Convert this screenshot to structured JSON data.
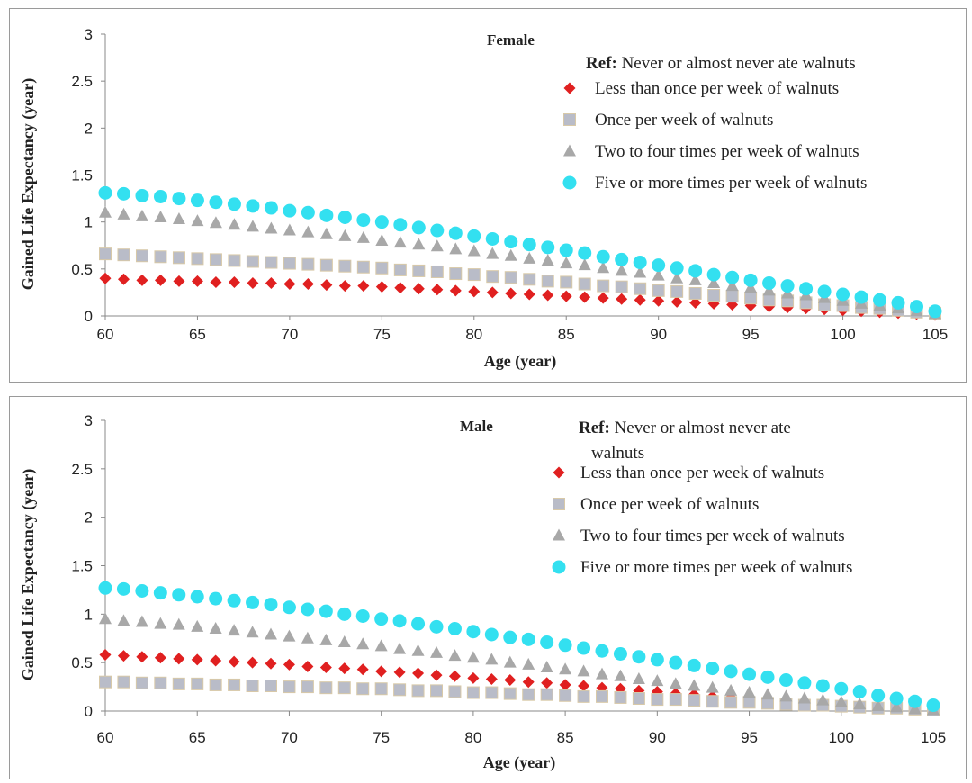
{
  "chart_data": [
    {
      "type": "scatter",
      "title": "Female",
      "xlabel": "Age (year)",
      "ylabel": "Gained Life Expectancy (year)",
      "xlim": [
        60,
        105
      ],
      "ylim": [
        0,
        3
      ],
      "x_ticks": [
        "60",
        "65",
        "70",
        "75",
        "80",
        "85",
        "90",
        "95",
        "100",
        "105"
      ],
      "y_ticks": [
        "0",
        "0.5",
        "1",
        "1.5",
        "2",
        "2.5",
        "3"
      ],
      "grid": false,
      "legend_position": "top-right",
      "legend_ref_label": "Ref:",
      "legend_ref_text": "Never or almost never ate walnuts",
      "x": [
        60,
        61,
        62,
        63,
        64,
        65,
        66,
        67,
        68,
        69,
        70,
        71,
        72,
        73,
        74,
        75,
        76,
        77,
        78,
        79,
        80,
        81,
        82,
        83,
        84,
        85,
        86,
        87,
        88,
        89,
        90,
        91,
        92,
        93,
        94,
        95,
        96,
        97,
        98,
        99,
        100,
        101,
        102,
        103,
        104,
        105
      ],
      "series": [
        {
          "name": "Less than once per week of walnuts",
          "marker": "diamond",
          "color": "#e02020",
          "values": [
            0.4,
            0.39,
            0.38,
            0.38,
            0.37,
            0.37,
            0.36,
            0.36,
            0.35,
            0.35,
            0.34,
            0.34,
            0.33,
            0.32,
            0.32,
            0.31,
            0.3,
            0.29,
            0.28,
            0.27,
            0.26,
            0.25,
            0.24,
            0.23,
            0.22,
            0.21,
            0.2,
            0.19,
            0.18,
            0.17,
            0.16,
            0.15,
            0.14,
            0.13,
            0.12,
            0.11,
            0.1,
            0.09,
            0.08,
            0.07,
            0.06,
            0.05,
            0.04,
            0.03,
            0.02,
            0.01
          ]
        },
        {
          "name": "Once per week of walnuts",
          "marker": "square",
          "color": "#b9bcc8",
          "values": [
            0.66,
            0.65,
            0.64,
            0.63,
            0.62,
            0.61,
            0.6,
            0.59,
            0.58,
            0.57,
            0.56,
            0.55,
            0.54,
            0.53,
            0.52,
            0.51,
            0.49,
            0.48,
            0.47,
            0.45,
            0.44,
            0.42,
            0.41,
            0.39,
            0.37,
            0.36,
            0.34,
            0.32,
            0.31,
            0.29,
            0.27,
            0.26,
            0.24,
            0.22,
            0.21,
            0.19,
            0.17,
            0.16,
            0.14,
            0.12,
            0.11,
            0.09,
            0.08,
            0.06,
            0.04,
            0.03
          ]
        },
        {
          "name": "Two to four times per week of walnuts",
          "marker": "triangle",
          "color": "#a8a8a8",
          "values": [
            1.1,
            1.08,
            1.06,
            1.05,
            1.03,
            1.01,
            0.99,
            0.97,
            0.95,
            0.93,
            0.91,
            0.89,
            0.87,
            0.85,
            0.83,
            0.8,
            0.78,
            0.76,
            0.74,
            0.71,
            0.69,
            0.66,
            0.64,
            0.61,
            0.59,
            0.56,
            0.54,
            0.51,
            0.48,
            0.46,
            0.43,
            0.4,
            0.38,
            0.35,
            0.32,
            0.3,
            0.27,
            0.24,
            0.22,
            0.19,
            0.16,
            0.13,
            0.11,
            0.08,
            0.05,
            0.02
          ]
        },
        {
          "name": "Five or more times per week of walnuts",
          "marker": "circle",
          "color": "#33e0f0",
          "values": [
            1.31,
            1.3,
            1.28,
            1.27,
            1.25,
            1.23,
            1.21,
            1.19,
            1.17,
            1.15,
            1.12,
            1.1,
            1.07,
            1.05,
            1.02,
            1.0,
            0.97,
            0.94,
            0.91,
            0.88,
            0.85,
            0.82,
            0.79,
            0.76,
            0.73,
            0.7,
            0.67,
            0.63,
            0.6,
            0.57,
            0.54,
            0.51,
            0.48,
            0.44,
            0.41,
            0.38,
            0.35,
            0.32,
            0.29,
            0.26,
            0.23,
            0.2,
            0.17,
            0.14,
            0.1,
            0.05
          ]
        }
      ]
    },
    {
      "type": "scatter",
      "title": "Male",
      "xlabel": "Age (year)",
      "ylabel": "Gained Life Expectancy (year)",
      "xlim": [
        60,
        105
      ],
      "ylim": [
        0,
        3
      ],
      "x_ticks": [
        "60",
        "65",
        "70",
        "75",
        "80",
        "85",
        "90",
        "95",
        "100",
        "105"
      ],
      "y_ticks": [
        "0",
        "0.5",
        "1",
        "1.5",
        "2",
        "2.5",
        "3"
      ],
      "grid": false,
      "legend_position": "top-right",
      "legend_ref_label": "Ref:",
      "legend_ref_text": "Never or almost never ate",
      "legend_ref_text_2": "walnuts",
      "x": [
        60,
        61,
        62,
        63,
        64,
        65,
        66,
        67,
        68,
        69,
        70,
        71,
        72,
        73,
        74,
        75,
        76,
        77,
        78,
        79,
        80,
        81,
        82,
        83,
        84,
        85,
        86,
        87,
        88,
        89,
        90,
        91,
        92,
        93,
        94,
        95,
        96,
        97,
        98,
        99,
        100,
        101,
        102,
        103,
        104,
        105
      ],
      "series": [
        {
          "name": "Less than once per week of walnuts",
          "marker": "diamond",
          "color": "#e02020",
          "values": [
            0.58,
            0.57,
            0.56,
            0.55,
            0.54,
            0.53,
            0.52,
            0.51,
            0.5,
            0.49,
            0.48,
            0.46,
            0.45,
            0.44,
            0.43,
            0.41,
            0.4,
            0.39,
            0.37,
            0.36,
            0.34,
            0.33,
            0.32,
            0.3,
            0.29,
            0.27,
            0.26,
            0.24,
            0.23,
            0.21,
            0.2,
            0.18,
            0.17,
            0.15,
            0.14,
            0.12,
            0.11,
            0.09,
            0.08,
            0.07,
            0.06,
            0.05,
            0.04,
            0.03,
            0.02,
            0.01
          ]
        },
        {
          "name": "Once per week of walnuts",
          "marker": "square",
          "color": "#b9bcc8",
          "values": [
            0.3,
            0.3,
            0.29,
            0.29,
            0.28,
            0.28,
            0.27,
            0.27,
            0.26,
            0.26,
            0.25,
            0.25,
            0.24,
            0.24,
            0.23,
            0.23,
            0.22,
            0.21,
            0.21,
            0.2,
            0.19,
            0.19,
            0.18,
            0.17,
            0.17,
            0.16,
            0.15,
            0.15,
            0.14,
            0.13,
            0.12,
            0.12,
            0.11,
            0.1,
            0.09,
            0.09,
            0.08,
            0.07,
            0.06,
            0.06,
            0.05,
            0.04,
            0.03,
            0.03,
            0.02,
            0.01
          ]
        },
        {
          "name": "Two to four times per week of walnuts",
          "marker": "triangle",
          "color": "#a8a8a8",
          "values": [
            0.95,
            0.93,
            0.92,
            0.9,
            0.89,
            0.87,
            0.85,
            0.83,
            0.81,
            0.79,
            0.77,
            0.75,
            0.73,
            0.71,
            0.69,
            0.67,
            0.64,
            0.62,
            0.6,
            0.57,
            0.55,
            0.53,
            0.5,
            0.48,
            0.45,
            0.43,
            0.41,
            0.38,
            0.36,
            0.33,
            0.31,
            0.28,
            0.26,
            0.24,
            0.21,
            0.19,
            0.17,
            0.15,
            0.13,
            0.11,
            0.09,
            0.07,
            0.05,
            0.04,
            0.02,
            0.01
          ]
        },
        {
          "name": "Five or more times per week of walnuts",
          "marker": "circle",
          "color": "#33e0f0",
          "values": [
            1.27,
            1.26,
            1.24,
            1.22,
            1.2,
            1.18,
            1.16,
            1.14,
            1.12,
            1.1,
            1.07,
            1.05,
            1.03,
            1.0,
            0.98,
            0.95,
            0.93,
            0.9,
            0.87,
            0.85,
            0.82,
            0.79,
            0.76,
            0.74,
            0.71,
            0.68,
            0.65,
            0.62,
            0.59,
            0.56,
            0.53,
            0.5,
            0.47,
            0.44,
            0.41,
            0.38,
            0.35,
            0.32,
            0.29,
            0.26,
            0.23,
            0.2,
            0.16,
            0.13,
            0.1,
            0.06
          ]
        }
      ]
    }
  ]
}
